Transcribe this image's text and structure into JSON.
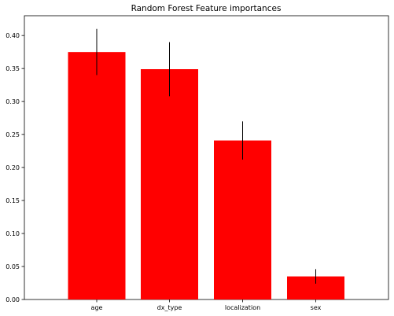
{
  "chart_data": {
    "type": "bar",
    "title": "Random Forest Feature importances",
    "xlabel": "",
    "ylabel": "",
    "categories": [
      "age",
      "dx_type",
      "localization",
      "sex"
    ],
    "values": [
      0.375,
      0.349,
      0.241,
      0.035
    ],
    "errors": [
      0.035,
      0.041,
      0.029,
      0.011
    ],
    "ylim": [
      0.0,
      0.43
    ],
    "yticks": [
      0.0,
      0.05,
      0.1,
      0.15,
      0.2,
      0.25,
      0.3,
      0.35,
      0.4
    ],
    "ytick_labels": [
      "0.00",
      "0.05",
      "0.10",
      "0.15",
      "0.20",
      "0.25",
      "0.30",
      "0.35",
      "0.40"
    ],
    "bar_color": "#ff0000",
    "error_color": "#000000",
    "grid": false,
    "legend": "none"
  }
}
